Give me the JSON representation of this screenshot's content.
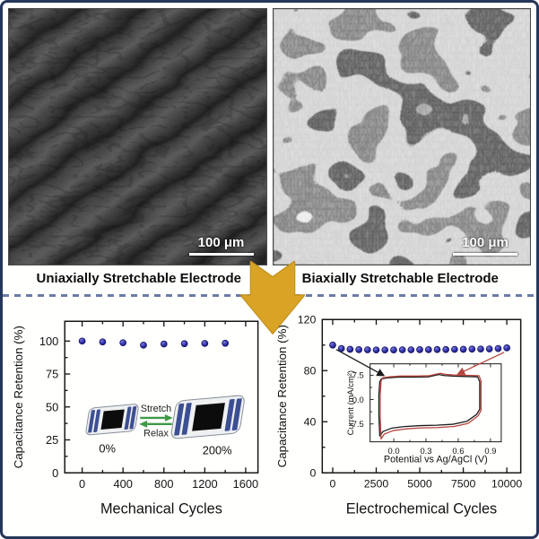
{
  "sem_left": {
    "label": "Uniaxially Stretchable Electrode",
    "scale_bar": "100 μm"
  },
  "sem_right": {
    "label": "Biaxially Stretchable Electrode",
    "scale_bar": "100 μm"
  },
  "colors": {
    "border": "#26365a",
    "dashed_divider": "#6b7aa8",
    "arrow_gold": "#d9a326",
    "data_dot_blue": "#2c2ca0",
    "cv_black": "#1a1a1a",
    "cv_red": "#b5443c",
    "green_arrow": "#3f9948",
    "device_blue": "#3d4f93"
  },
  "chart_data": [
    {
      "type": "scatter",
      "x": [
        0,
        200,
        400,
        600,
        800,
        1000,
        1200,
        1400
      ],
      "y": [
        100,
        99.3,
        98.7,
        96.9,
        97.8,
        98.0,
        98.2,
        98.3
      ],
      "xlabel": "Mechanical  Cycles",
      "ylabel": "Capacitance Retention (%)",
      "xticks": [
        0,
        400,
        800,
        1200,
        1600
      ],
      "yticks": [
        0,
        25,
        50,
        75,
        100
      ],
      "xlim": [
        -170,
        1720
      ],
      "ylim": [
        0,
        115
      ],
      "grid": false,
      "legend": "none",
      "inset": {
        "type": "schematic",
        "labels": {
          "left_strain": "0%",
          "right_strain": "200%",
          "top": "Stretch",
          "bottom": "Relax"
        }
      }
    },
    {
      "type": "scatter",
      "x": [
        0,
        500,
        1000,
        1500,
        2000,
        2500,
        3000,
        3500,
        4000,
        4500,
        5000,
        5500,
        6000,
        6500,
        7000,
        7500,
        8000,
        8500,
        9000,
        9500,
        10000
      ],
      "y": [
        100,
        97.3,
        96.7,
        96.4,
        96.3,
        96.2,
        96.2,
        96.2,
        96.3,
        96.3,
        96.4,
        96.4,
        96.5,
        96.5,
        96.6,
        96.7,
        96.8,
        96.9,
        97.0,
        97.3,
        97.8
      ],
      "xlabel": "Electrochemical Cycles",
      "ylabel": "Capacitance Retention (%)",
      "xticks": [
        0,
        2500,
        5000,
        7500,
        10000
      ],
      "yticks": [
        0,
        40,
        80,
        120
      ],
      "xlim": [
        -600,
        10800
      ],
      "ylim": [
        0,
        120
      ],
      "grid": false,
      "legend": "none",
      "inset": {
        "type": "line",
        "xlabel": "Potential vs Ag/AgCl (V)",
        "ylabel": "Current (mA/cm²)",
        "xticks": [
          "0.0",
          "0.3",
          "0.6",
          "0.9"
        ],
        "yticks": [
          "7.5",
          "0.0",
          "-7.5"
        ],
        "xlim": [
          -0.22,
          1.0
        ],
        "ylim": [
          -13,
          11
        ],
        "series": [
          {
            "name": "cv-initial",
            "color": "#1a1a1a"
          },
          {
            "name": "cv-after-cycling",
            "color": "#b5443c"
          }
        ],
        "loop": [
          [
            -0.13,
            5.5
          ],
          [
            -0.115,
            6.4
          ],
          [
            -0.05,
            6.7
          ],
          [
            0.05,
            6.9
          ],
          [
            0.2,
            6.9
          ],
          [
            0.32,
            7.0
          ],
          [
            0.42,
            7.7
          ],
          [
            0.47,
            7.4
          ],
          [
            0.55,
            7.2
          ],
          [
            0.68,
            7.1
          ],
          [
            0.78,
            7.0
          ],
          [
            0.8,
            5.5
          ],
          [
            0.8,
            -3.0
          ],
          [
            0.77,
            -4.6
          ],
          [
            0.68,
            -6.7
          ],
          [
            0.55,
            -7.6
          ],
          [
            0.4,
            -7.9
          ],
          [
            0.25,
            -8.0
          ],
          [
            0.1,
            -8.3
          ],
          [
            -0.02,
            -8.8
          ],
          [
            -0.1,
            -9.8
          ],
          [
            -0.13,
            -11.2
          ],
          [
            -0.138,
            -5.0
          ],
          [
            -0.138,
            1.5
          ],
          [
            -0.13,
            5.5
          ]
        ]
      }
    }
  ]
}
